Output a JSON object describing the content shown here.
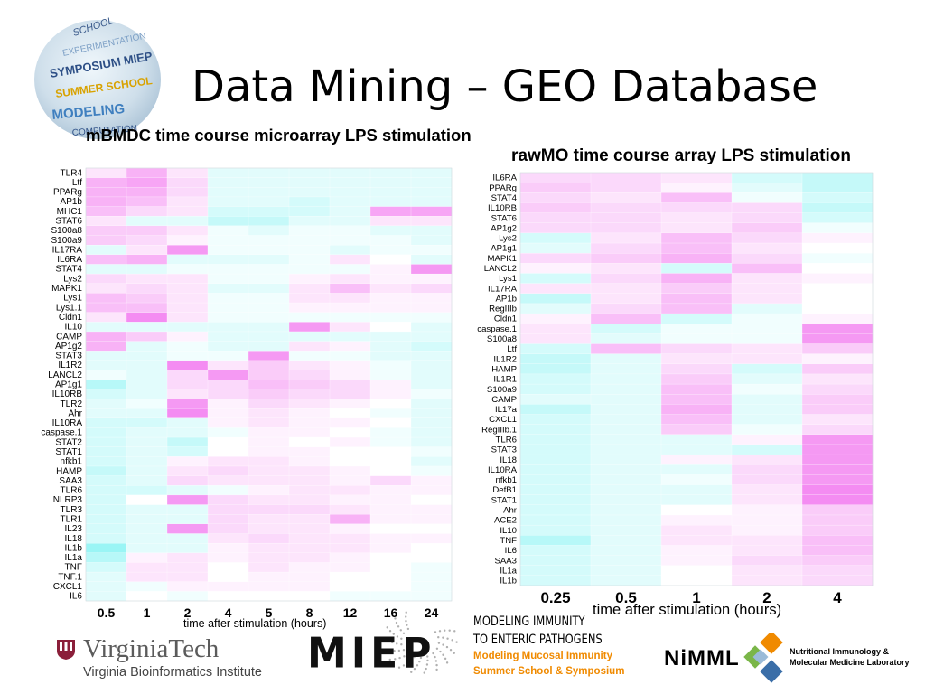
{
  "slide": {
    "title": "Data Mining – GEO Database"
  },
  "logos": {
    "globe_words": [
      "SCHOOL",
      "EXPERIMENTATION",
      "SYMPOSIUM MIEP",
      "SUMMER SCHOOL",
      "MODELING",
      "COMPUTATION"
    ],
    "vt_name": "VirginiaTech",
    "vt_sub": "Virginia Bioinformatics Institute",
    "miep": "MIEP",
    "mi_line1": "MODELING IMMUNITY",
    "mi_line2": "TO ENTERIC PATHOGENS",
    "mi_line3": "Modeling Mucosal Immunity",
    "mi_line4": "Summer School & Symposium",
    "nimml": "NiMML",
    "nimml_full1": "Nutritional Immunology &",
    "nimml_full2": "Molecular Medicine Laboratory"
  },
  "colors": {
    "pink": "#f37ff0",
    "cyan": "#6ff0f0",
    "neutral": "#ffffff",
    "accent_orange": "#f08a00"
  },
  "chart_data": [
    {
      "type": "heatmap",
      "title": "mBMDC time course microarray LPS stimulation",
      "xlabel": "time after stimulation (hours)",
      "ylabel": "",
      "x": [
        "0.5",
        "1",
        "2",
        "4",
        "5",
        "8",
        "12",
        "16",
        "24"
      ],
      "y": [
        "TLR4",
        "Ltf",
        "PPARg",
        "AP1b",
        "MHC1",
        "STAT6",
        "S100a8",
        "S100a9",
        "IL17RA",
        "IL6RA",
        "STAT4",
        "Lys2",
        "MAPK1",
        "Lys1",
        "Lys1.1",
        "Cldn1",
        "IL10",
        "CAMP",
        "AP1g2",
        "STAT3",
        "IL1R2",
        "LANCL2",
        "AP1g1",
        "IL10RB",
        "TLR2",
        "Ahr",
        "IL10RA",
        "caspase.1",
        "STAT2",
        "STAT1",
        "nfkb1",
        "HAMP",
        "SAA3",
        "TLR6",
        "NLRP3",
        "TLR3",
        "TLR1",
        "IL23",
        "IL18",
        "IL1b",
        "IL1a",
        "TNF",
        "TNF.1",
        "CXCL1",
        "IL6"
      ],
      "value_range": [
        -1,
        1
      ],
      "values": [
        [
          0.2,
          0.6,
          0.2,
          -0.2,
          -0.2,
          -0.2,
          -0.2,
          -0.2,
          -0.2
        ],
        [
          0.6,
          0.7,
          0.3,
          -0.2,
          -0.2,
          -0.2,
          -0.2,
          -0.2,
          -0.2
        ],
        [
          0.6,
          0.6,
          0.3,
          -0.2,
          -0.2,
          -0.2,
          -0.2,
          -0.2,
          -0.2
        ],
        [
          0.6,
          0.5,
          0.2,
          -0.2,
          -0.2,
          -0.3,
          -0.2,
          -0.2,
          -0.2
        ],
        [
          0.5,
          0.3,
          0.2,
          -0.3,
          -0.3,
          -0.3,
          -0.2,
          0.7,
          0.7
        ],
        [
          0.2,
          -0.2,
          -0.2,
          -0.4,
          -0.4,
          -0.2,
          -0.2,
          0.2,
          0.2
        ],
        [
          0.4,
          0.4,
          0.2,
          -0.1,
          -0.2,
          -0.1,
          -0.1,
          -0.2,
          -0.2
        ],
        [
          0.4,
          0.3,
          0.1,
          -0.1,
          -0.1,
          -0.1,
          -0.1,
          -0.1,
          -0.2
        ],
        [
          -0.2,
          0.2,
          0.8,
          -0.1,
          -0.1,
          -0.1,
          -0.2,
          -0.1,
          -0.1
        ],
        [
          0.5,
          0.6,
          -0.2,
          -0.2,
          -0.2,
          -0.1,
          0.2,
          0.0,
          -0.2
        ],
        [
          -0.2,
          -0.2,
          -0.1,
          -0.1,
          -0.1,
          -0.1,
          -0.1,
          0.1,
          0.8
        ],
        [
          0.3,
          0.2,
          0.2,
          -0.1,
          -0.1,
          0.1,
          0.2,
          0.1,
          0.1
        ],
        [
          0.2,
          0.3,
          0.2,
          -0.2,
          -0.2,
          0.2,
          0.5,
          0.2,
          0.3
        ],
        [
          0.5,
          0.4,
          0.2,
          -0.1,
          -0.1,
          0.2,
          0.2,
          0.1,
          0.1
        ],
        [
          0.5,
          0.5,
          0.2,
          -0.1,
          -0.1,
          0.1,
          0.1,
          0.1,
          0.1
        ],
        [
          0.2,
          0.9,
          0.2,
          -0.1,
          -0.1,
          -0.1,
          -0.1,
          -0.1,
          -0.1
        ],
        [
          -0.2,
          -0.2,
          -0.2,
          -0.2,
          -0.2,
          0.8,
          0.2,
          0.0,
          -0.2
        ],
        [
          0.6,
          0.4,
          0.1,
          -0.2,
          -0.2,
          -0.2,
          -0.2,
          -0.2,
          -0.2
        ],
        [
          0.6,
          -0.2,
          -0.1,
          -0.2,
          -0.2,
          0.2,
          0.1,
          -0.2,
          -0.3
        ],
        [
          -0.2,
          -0.2,
          -0.1,
          -0.1,
          0.8,
          -0.1,
          -0.1,
          -0.2,
          -0.2
        ],
        [
          -0.2,
          -0.2,
          0.9,
          0.2,
          0.4,
          0.2,
          0.1,
          -0.1,
          -0.2
        ],
        [
          -0.1,
          -0.2,
          0.3,
          0.8,
          0.4,
          0.3,
          0.1,
          -0.1,
          -0.2
        ],
        [
          -0.5,
          -0.2,
          0.3,
          0.3,
          0.5,
          0.4,
          0.3,
          0.1,
          -0.2
        ],
        [
          -0.3,
          -0.2,
          0.2,
          0.3,
          0.4,
          0.3,
          0.3,
          0.1,
          -0.1
        ],
        [
          -0.2,
          -0.1,
          0.8,
          0.1,
          0.3,
          0.2,
          0.1,
          0.0,
          -0.2
        ],
        [
          -0.2,
          -0.2,
          0.9,
          0.1,
          0.2,
          0.1,
          0.0,
          -0.1,
          -0.2
        ],
        [
          -0.3,
          -0.3,
          -0.2,
          0.1,
          0.2,
          0.1,
          0.1,
          0.0,
          -0.2
        ],
        [
          -0.3,
          -0.2,
          -0.2,
          -0.1,
          0.1,
          0.1,
          0.0,
          -0.1,
          -0.2
        ],
        [
          -0.3,
          -0.2,
          -0.4,
          0.0,
          0.1,
          0.0,
          0.1,
          -0.1,
          -0.2
        ],
        [
          -0.3,
          -0.2,
          -0.3,
          0.0,
          0.1,
          0.1,
          0.0,
          0.0,
          -0.1
        ],
        [
          -0.3,
          -0.2,
          0.1,
          0.2,
          0.2,
          0.1,
          0.0,
          0.0,
          -0.2
        ],
        [
          -0.4,
          -0.2,
          0.2,
          0.3,
          0.2,
          0.2,
          0.1,
          0.0,
          -0.1
        ],
        [
          -0.3,
          -0.2,
          0.3,
          0.2,
          0.2,
          0.2,
          0.1,
          0.3,
          0.1
        ],
        [
          -0.3,
          -0.3,
          -0.2,
          -0.1,
          0.1,
          0.2,
          0.2,
          0.1,
          0.1
        ],
        [
          -0.3,
          0.0,
          0.8,
          0.3,
          0.2,
          0.2,
          0.1,
          0.1,
          0.0
        ],
        [
          -0.3,
          -0.2,
          -0.2,
          0.3,
          0.3,
          0.3,
          0.2,
          0.1,
          0.1
        ],
        [
          -0.3,
          -0.2,
          -0.2,
          0.3,
          0.2,
          0.2,
          0.6,
          0.1,
          0.1
        ],
        [
          -0.3,
          -0.2,
          0.8,
          0.3,
          0.2,
          0.2,
          0.1,
          0.0,
          0.0
        ],
        [
          -0.3,
          -0.2,
          -0.2,
          0.2,
          0.3,
          0.2,
          0.2,
          0.1,
          0.1
        ],
        [
          -0.7,
          -0.2,
          -0.2,
          0.1,
          0.2,
          0.2,
          0.2,
          0.1,
          0.0
        ],
        [
          -0.5,
          0.1,
          0.2,
          0.1,
          0.2,
          0.2,
          0.1,
          0.0,
          0.0
        ],
        [
          -0.3,
          0.2,
          0.2,
          0.0,
          0.2,
          0.1,
          0.1,
          0.0,
          -0.1
        ],
        [
          -0.2,
          0.2,
          0.2,
          0.0,
          0.1,
          0.1,
          0.0,
          0.0,
          -0.1
        ],
        [
          -0.2,
          -0.1,
          0.1,
          0.1,
          0.1,
          0.1,
          0.0,
          0.0,
          -0.1
        ],
        [
          -0.2,
          0.0,
          -0.1,
          0.0,
          0.0,
          0.0,
          -0.1,
          -0.1,
          -0.1
        ]
      ]
    },
    {
      "type": "heatmap",
      "title": "rawMO time course array LPS stimulation",
      "xlabel": "time after stimulation (hours)",
      "ylabel": "",
      "x": [
        "0.25",
        "0.5",
        "1",
        "2",
        "4"
      ],
      "y": [
        "IL6RA",
        "PPARg",
        "STAT4",
        "IL10RB",
        "STAT6",
        "AP1g2",
        "Lys2",
        "AP1g1",
        "MAPK1",
        "LANCL2",
        "Lys1",
        "IL17RA",
        "AP1b",
        "RegIIIb",
        "Cldn1",
        "caspase.1",
        "S100a8",
        "Ltf",
        "IL1R2",
        "HAMP",
        "IL1R1",
        "S100a9",
        "CAMP",
        "IL17a",
        "CXCL1",
        "RegIIIb.1",
        "TLR6",
        "STAT3",
        "IL18",
        "IL10RA",
        "nfkb1",
        "DefB1",
        "STAT1",
        "Ahr",
        "ACE2",
        "IL10",
        "TNF",
        "IL6",
        "SAA3",
        "IL1a",
        "IL1b"
      ],
      "value_range": [
        -1,
        1
      ],
      "values": [
        [
          0.3,
          0.3,
          0.2,
          -0.3,
          -0.4
        ],
        [
          0.4,
          0.3,
          0.1,
          -0.2,
          -0.4
        ],
        [
          0.3,
          0.2,
          0.5,
          -0.1,
          -0.3
        ],
        [
          0.4,
          0.3,
          0.3,
          0.3,
          -0.4
        ],
        [
          0.3,
          0.3,
          0.2,
          0.3,
          -0.3
        ],
        [
          0.3,
          0.3,
          0.2,
          0.4,
          -0.1
        ],
        [
          -0.3,
          0.2,
          0.5,
          0.3,
          0.1
        ],
        [
          -0.2,
          0.3,
          0.5,
          0.2,
          0.0
        ],
        [
          0.3,
          0.4,
          0.6,
          0.3,
          -0.1
        ],
        [
          0.1,
          0.2,
          -0.3,
          0.5,
          0.0
        ],
        [
          -0.3,
          0.3,
          0.6,
          0.2,
          0.1
        ],
        [
          0.2,
          0.2,
          0.4,
          0.2,
          0.0
        ],
        [
          -0.4,
          0.2,
          0.5,
          0.2,
          0.0
        ],
        [
          -0.2,
          0.3,
          0.5,
          -0.2,
          0.0
        ],
        [
          0.1,
          0.5,
          -0.3,
          -0.1,
          0.1
        ],
        [
          0.2,
          -0.3,
          -0.1,
          -0.1,
          0.8
        ],
        [
          0.2,
          -0.2,
          -0.1,
          -0.1,
          0.8
        ],
        [
          -0.3,
          0.5,
          0.3,
          0.2,
          0.4
        ],
        [
          -0.4,
          -0.2,
          0.2,
          0.2,
          0.1
        ],
        [
          -0.4,
          -0.2,
          0.3,
          -0.3,
          0.4
        ],
        [
          -0.3,
          -0.2,
          0.4,
          -0.2,
          0.2
        ],
        [
          -0.3,
          -0.2,
          0.5,
          -0.1,
          0.3
        ],
        [
          -0.2,
          -0.2,
          0.5,
          -0.2,
          0.4
        ],
        [
          -0.4,
          -0.2,
          0.6,
          -0.2,
          0.4
        ],
        [
          -0.3,
          -0.2,
          0.5,
          -0.2,
          0.2
        ],
        [
          -0.3,
          -0.2,
          0.4,
          -0.1,
          0.3
        ],
        [
          -0.3,
          -0.2,
          -0.2,
          0.1,
          0.8
        ],
        [
          -0.3,
          -0.2,
          -0.2,
          -0.3,
          0.8
        ],
        [
          -0.3,
          -0.2,
          0.1,
          0.2,
          0.8
        ],
        [
          -0.3,
          -0.2,
          -0.2,
          0.3,
          0.8
        ],
        [
          -0.3,
          -0.2,
          -0.1,
          0.3,
          0.8
        ],
        [
          -0.3,
          -0.2,
          -0.2,
          0.2,
          0.9
        ],
        [
          -0.3,
          -0.2,
          -0.2,
          0.2,
          0.9
        ],
        [
          -0.3,
          -0.2,
          0.0,
          0.1,
          0.4
        ],
        [
          -0.3,
          -0.2,
          0.1,
          0.1,
          0.4
        ],
        [
          -0.3,
          -0.2,
          0.2,
          0.1,
          0.4
        ],
        [
          -0.5,
          -0.2,
          0.2,
          0.2,
          0.5
        ],
        [
          -0.3,
          -0.2,
          0.1,
          0.2,
          0.5
        ],
        [
          -0.3,
          -0.2,
          0.1,
          0.3,
          0.4
        ],
        [
          -0.3,
          -0.2,
          0.0,
          0.2,
          0.3
        ],
        [
          -0.3,
          -0.2,
          0.0,
          0.2,
          0.3
        ]
      ]
    }
  ]
}
